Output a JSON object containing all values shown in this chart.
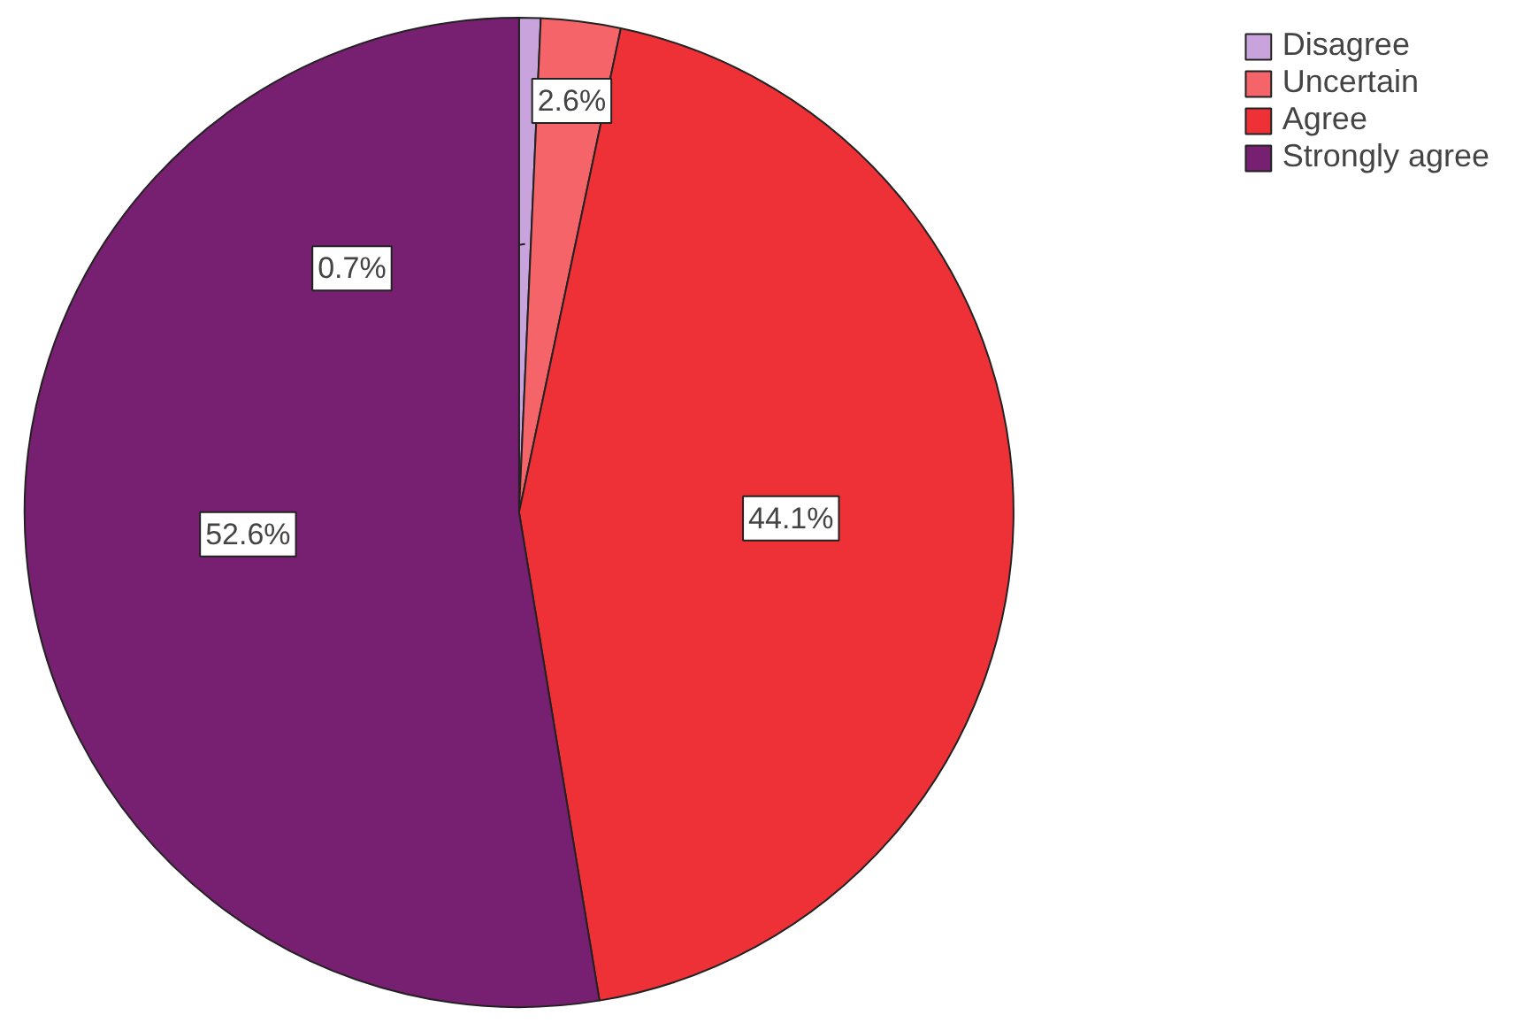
{
  "chart_data": {
    "type": "pie",
    "categories": [
      "Disagree",
      "Uncertain",
      "Agree",
      "Strongly agree"
    ],
    "values": [
      0.7,
      2.6,
      44.1,
      52.6
    ],
    "colors": [
      "#c9a3db",
      "#f46468",
      "#ee3137",
      "#771f70"
    ],
    "value_labels": [
      "0.7%",
      "2.6%",
      "44.1%",
      "52.6%"
    ],
    "legend": "top right"
  }
}
